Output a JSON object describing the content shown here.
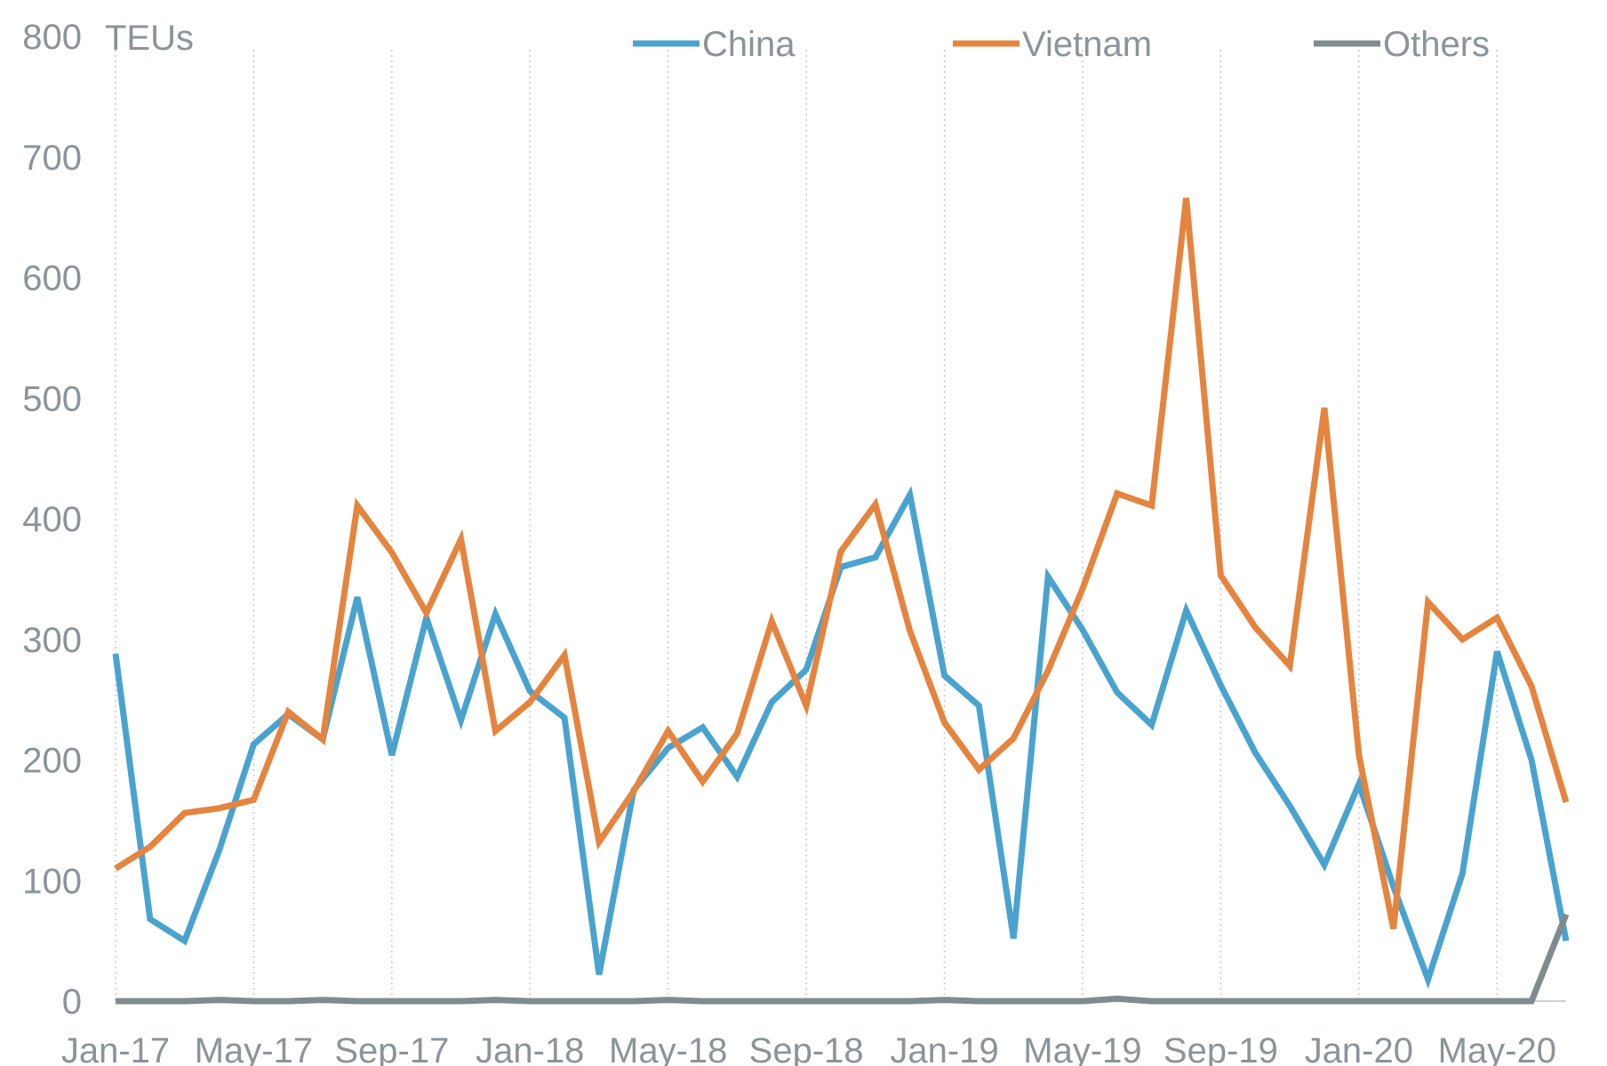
{
  "chart_data": {
    "type": "line",
    "title": "",
    "xlabel": "",
    "ylabel": "TEUs",
    "ylim": [
      0,
      800
    ],
    "yticks": [
      "0",
      "100",
      "200",
      "300",
      "400",
      "500",
      "600",
      "700",
      "800"
    ],
    "x": [
      "Jan-17",
      "Feb-17",
      "Mar-17",
      "Apr-17",
      "May-17",
      "Jun-17",
      "Jul-17",
      "Aug-17",
      "Sep-17",
      "Oct-17",
      "Nov-17",
      "Dec-17",
      "Jan-18",
      "Feb-18",
      "Mar-18",
      "Apr-18",
      "May-18",
      "Jun-18",
      "Jul-18",
      "Aug-18",
      "Sep-18",
      "Oct-18",
      "Nov-18",
      "Dec-18",
      "Jan-19",
      "Feb-19",
      "Mar-19",
      "Apr-19",
      "May-19",
      "Jun-19",
      "Jul-19",
      "Aug-19",
      "Sep-19",
      "Oct-19",
      "Nov-19",
      "Dec-19",
      "Jan-20",
      "Feb-20",
      "Mar-20",
      "Apr-20",
      "May-20",
      "Jun-20",
      "Jul-20"
    ],
    "xtick_labels": [
      "Jan-17",
      "May-17",
      "Sep-17",
      "Jan-18",
      "May-18",
      "Sep-18",
      "Jan-19",
      "May-19",
      "Sep-19",
      "Jan-20",
      "May-20"
    ],
    "grid": "vertical dotted",
    "legend": "top",
    "series": [
      {
        "name": "China",
        "color": "#4aa3cf",
        "values": [
          288,
          68,
          50,
          125,
          213,
          238,
          217,
          335,
          204,
          318,
          233,
          321,
          257,
          235,
          22,
          175,
          210,
          227,
          186,
          248,
          275,
          360,
          368,
          420,
          270,
          245,
          52,
          352,
          308,
          256,
          229,
          324,
          262,
          206,
          162,
          113,
          180,
          95,
          18,
          106,
          290,
          200,
          50
        ]
      },
      {
        "name": "Vietnam",
        "color": "#e5843e",
        "values": [
          110,
          128,
          156,
          160,
          167,
          240,
          217,
          411,
          372,
          322,
          383,
          224,
          248,
          287,
          132,
          174,
          224,
          182,
          222,
          315,
          245,
          373,
          412,
          307,
          231,
          192,
          218,
          274,
          342,
          421,
          411,
          666,
          353,
          310,
          278,
          492,
          204,
          60,
          331,
          300,
          318,
          261,
          165
        ]
      },
      {
        "name": "Others",
        "color": "#7f8c8d",
        "values": [
          0,
          0,
          0,
          1,
          0,
          0,
          1,
          0,
          0,
          0,
          0,
          1,
          0,
          0,
          0,
          0,
          1,
          0,
          0,
          0,
          0,
          0,
          0,
          0,
          1,
          0,
          0,
          0,
          0,
          2,
          0,
          0,
          0,
          0,
          0,
          0,
          0,
          0,
          0,
          0,
          0,
          0,
          72
        ]
      }
    ]
  }
}
